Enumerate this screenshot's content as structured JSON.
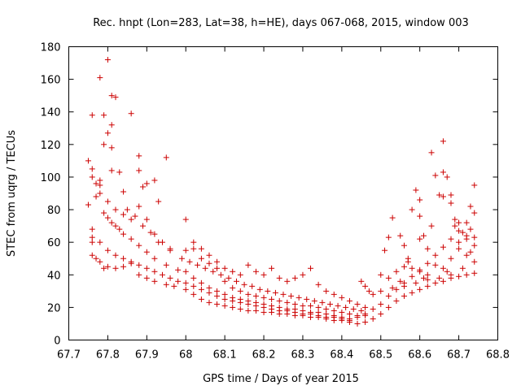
{
  "chart_data": {
    "type": "scatter",
    "title": "Rec. hnpt (Lon=283, Lat=38, h=HE), days 067-068, 2015, window 003",
    "xlabel": "GPS time / Days of year 2015",
    "ylabel": "STEC from uqrg / TECUs",
    "xlim": [
      67.7,
      68.8
    ],
    "ylim": [
      0,
      180
    ],
    "xticks": [
      "67.7",
      "67.8",
      "67.9",
      "68",
      "68.1",
      "68.2",
      "68.3",
      "68.4",
      "68.5",
      "68.6",
      "68.7",
      "68.8"
    ],
    "yticks": [
      "0",
      "20",
      "40",
      "60",
      "80",
      "100",
      "120",
      "140",
      "160",
      "180"
    ],
    "grid": false,
    "legend": "none",
    "marker": "plus",
    "color": "#cc0000",
    "points": [
      [
        67.75,
        110
      ],
      [
        67.76,
        105
      ],
      [
        67.77,
        96
      ],
      [
        67.78,
        98
      ],
      [
        67.76,
        138
      ],
      [
        67.78,
        161
      ],
      [
        67.8,
        172
      ],
      [
        67.79,
        138
      ],
      [
        67.8,
        127
      ],
      [
        67.81,
        150
      ],
      [
        67.82,
        149
      ],
      [
        67.81,
        132
      ],
      [
        67.81,
        118
      ],
      [
        67.79,
        120
      ],
      [
        67.81,
        104
      ],
      [
        67.83,
        103
      ],
      [
        67.84,
        91
      ],
      [
        67.86,
        139
      ],
      [
        67.88,
        113
      ],
      [
        67.88,
        104
      ],
      [
        67.9,
        96
      ],
      [
        67.92,
        98
      ],
      [
        67.95,
        112
      ],
      [
        67.93,
        85
      ],
      [
        67.89,
        94
      ],
      [
        67.75,
        83
      ],
      [
        67.76,
        63
      ],
      [
        67.76,
        60
      ],
      [
        67.76,
        52
      ],
      [
        67.77,
        50
      ],
      [
        67.78,
        48
      ],
      [
        67.79,
        44
      ],
      [
        67.8,
        45
      ],
      [
        67.82,
        44
      ],
      [
        67.84,
        45
      ],
      [
        67.86,
        47
      ],
      [
        67.88,
        40
      ],
      [
        67.9,
        38
      ],
      [
        67.92,
        36
      ],
      [
        67.95,
        34
      ],
      [
        67.97,
        33
      ],
      [
        68.0,
        31
      ],
      [
        68.02,
        28
      ],
      [
        68.04,
        25
      ],
      [
        68.06,
        23
      ],
      [
        68.08,
        22
      ],
      [
        68.1,
        21
      ],
      [
        68.12,
        20
      ],
      [
        68.14,
        19
      ],
      [
        68.16,
        18
      ],
      [
        68.18,
        18
      ],
      [
        68.2,
        17
      ],
      [
        68.22,
        17
      ],
      [
        68.24,
        16
      ],
      [
        68.26,
        16
      ],
      [
        68.28,
        15
      ],
      [
        68.3,
        15
      ],
      [
        68.32,
        14
      ],
      [
        68.34,
        14
      ],
      [
        68.36,
        13
      ],
      [
        68.38,
        12
      ],
      [
        68.4,
        12
      ],
      [
        68.42,
        11
      ],
      [
        68.44,
        10
      ],
      [
        68.46,
        11
      ],
      [
        68.48,
        13
      ],
      [
        68.5,
        16
      ],
      [
        68.52,
        20
      ],
      [
        68.54,
        24
      ],
      [
        68.56,
        27
      ],
      [
        68.58,
        29
      ],
      [
        68.6,
        31
      ],
      [
        68.62,
        33
      ],
      [
        68.64,
        35
      ],
      [
        68.66,
        36
      ],
      [
        68.68,
        38
      ],
      [
        68.7,
        39
      ],
      [
        68.72,
        40
      ],
      [
        68.74,
        41
      ],
      [
        67.76,
        100
      ],
      [
        67.78,
        90
      ],
      [
        67.8,
        75
      ],
      [
        67.82,
        70
      ],
      [
        67.84,
        65
      ],
      [
        67.86,
        62
      ],
      [
        67.88,
        58
      ],
      [
        67.9,
        54
      ],
      [
        67.92,
        50
      ],
      [
        67.95,
        46
      ],
      [
        67.98,
        43
      ],
      [
        68.0,
        42
      ],
      [
        68.02,
        38
      ],
      [
        68.04,
        35
      ],
      [
        68.06,
        32
      ],
      [
        68.08,
        30
      ],
      [
        68.1,
        28
      ],
      [
        68.12,
        26
      ],
      [
        68.14,
        25
      ],
      [
        68.16,
        24
      ],
      [
        68.18,
        23
      ],
      [
        68.2,
        22
      ],
      [
        68.22,
        21
      ],
      [
        68.24,
        20
      ],
      [
        68.26,
        19
      ],
      [
        68.28,
        19
      ],
      [
        68.3,
        18
      ],
      [
        68.32,
        17
      ],
      [
        68.34,
        17
      ],
      [
        68.36,
        16
      ],
      [
        68.38,
        15
      ],
      [
        68.4,
        14
      ],
      [
        68.42,
        13
      ],
      [
        68.44,
        14
      ],
      [
        68.46,
        16
      ],
      [
        68.48,
        19
      ],
      [
        68.5,
        22
      ],
      [
        68.52,
        27
      ],
      [
        68.54,
        31
      ],
      [
        68.56,
        35
      ],
      [
        68.58,
        39
      ],
      [
        68.6,
        43
      ],
      [
        68.62,
        47
      ],
      [
        68.64,
        52
      ],
      [
        68.66,
        57
      ],
      [
        68.68,
        62
      ],
      [
        68.7,
        67
      ],
      [
        68.72,
        72
      ],
      [
        68.74,
        78
      ],
      [
        67.76,
        68
      ],
      [
        67.78,
        60
      ],
      [
        67.8,
        55
      ],
      [
        67.82,
        52
      ],
      [
        67.84,
        50
      ],
      [
        67.86,
        48
      ],
      [
        67.88,
        46
      ],
      [
        67.9,
        44
      ],
      [
        67.92,
        42
      ],
      [
        67.94,
        40
      ],
      [
        67.96,
        38
      ],
      [
        67.98,
        36
      ],
      [
        68.0,
        35
      ],
      [
        68.02,
        33
      ],
      [
        68.04,
        31
      ],
      [
        68.06,
        29
      ],
      [
        68.08,
        27
      ],
      [
        68.1,
        25
      ],
      [
        68.12,
        24
      ],
      [
        68.14,
        23
      ],
      [
        68.16,
        22
      ],
      [
        68.18,
        21
      ],
      [
        68.2,
        20
      ],
      [
        68.22,
        19
      ],
      [
        68.24,
        18
      ],
      [
        68.26,
        18
      ],
      [
        68.28,
        17
      ],
      [
        68.3,
        16
      ],
      [
        68.32,
        16
      ],
      [
        68.34,
        15
      ],
      [
        68.36,
        14
      ],
      [
        68.38,
        14
      ],
      [
        68.4,
        13
      ],
      [
        68.42,
        12
      ],
      [
        67.77,
        88
      ],
      [
        67.79,
        78
      ],
      [
        67.81,
        72
      ],
      [
        67.83,
        68
      ],
      [
        67.85,
        80
      ],
      [
        67.87,
        76
      ],
      [
        67.89,
        70
      ],
      [
        67.91,
        66
      ],
      [
        67.93,
        60
      ],
      [
        67.96,
        56
      ],
      [
        67.99,
        50
      ],
      [
        68.01,
        48
      ],
      [
        68.03,
        46
      ],
      [
        68.05,
        44
      ],
      [
        68.07,
        42
      ],
      [
        68.09,
        40
      ],
      [
        68.11,
        38
      ],
      [
        68.13,
        36
      ],
      [
        68.15,
        34
      ],
      [
        68.17,
        33
      ],
      [
        68.19,
        31
      ],
      [
        68.21,
        30
      ],
      [
        68.23,
        29
      ],
      [
        68.25,
        28
      ],
      [
        68.27,
        27
      ],
      [
        68.29,
        26
      ],
      [
        68.31,
        25
      ],
      [
        68.33,
        24
      ],
      [
        68.35,
        23
      ],
      [
        68.37,
        22
      ],
      [
        68.39,
        21
      ],
      [
        68.41,
        20
      ],
      [
        68.43,
        19
      ],
      [
        68.45,
        18
      ],
      [
        67.78,
        95
      ],
      [
        67.8,
        85
      ],
      [
        67.82,
        80
      ],
      [
        67.84,
        77
      ],
      [
        67.86,
        74
      ],
      [
        67.88,
        82
      ],
      [
        67.9,
        74
      ],
      [
        67.92,
        65
      ],
      [
        67.94,
        60
      ],
      [
        67.96,
        55
      ],
      [
        68.0,
        55
      ],
      [
        68.02,
        60
      ],
      [
        68.04,
        56
      ],
      [
        68.06,
        52
      ],
      [
        68.08,
        48
      ],
      [
        68.1,
        44
      ],
      [
        68.12,
        42
      ],
      [
        68.14,
        40
      ],
      [
        68.16,
        46
      ],
      [
        68.18,
        42
      ],
      [
        68.2,
        40
      ],
      [
        68.22,
        44
      ],
      [
        68.24,
        38
      ],
      [
        68.26,
        36
      ],
      [
        68.28,
        38
      ],
      [
        68.3,
        40
      ],
      [
        68.32,
        44
      ],
      [
        68.34,
        34
      ],
      [
        68.36,
        30
      ],
      [
        68.38,
        28
      ],
      [
        68.4,
        26
      ],
      [
        68.42,
        24
      ],
      [
        68.44,
        22
      ],
      [
        68.46,
        20
      ],
      [
        68.0,
        74
      ],
      [
        68.02,
        56
      ],
      [
        68.04,
        50
      ],
      [
        68.06,
        47
      ],
      [
        68.08,
        44
      ],
      [
        68.1,
        36
      ],
      [
        68.12,
        32
      ],
      [
        68.14,
        30
      ],
      [
        68.16,
        28
      ],
      [
        68.18,
        27
      ],
      [
        68.2,
        26
      ],
      [
        68.22,
        25
      ],
      [
        68.24,
        24
      ],
      [
        68.26,
        23
      ],
      [
        68.28,
        22
      ],
      [
        68.3,
        21
      ],
      [
        68.32,
        21
      ],
      [
        68.34,
        20
      ],
      [
        68.36,
        19
      ],
      [
        68.38,
        18
      ],
      [
        68.4,
        17
      ],
      [
        68.42,
        16
      ],
      [
        68.44,
        15
      ],
      [
        68.46,
        15
      ],
      [
        68.45,
        36
      ],
      [
        68.46,
        33
      ],
      [
        68.47,
        30
      ],
      [
        68.48,
        28
      ],
      [
        68.5,
        40
      ],
      [
        68.51,
        55
      ],
      [
        68.52,
        63
      ],
      [
        68.53,
        75
      ],
      [
        68.55,
        64
      ],
      [
        68.56,
        58
      ],
      [
        68.57,
        50
      ],
      [
        68.58,
        80
      ],
      [
        68.59,
        92
      ],
      [
        68.6,
        86
      ],
      [
        68.6,
        76
      ],
      [
        68.61,
        64
      ],
      [
        68.62,
        56
      ],
      [
        68.63,
        115
      ],
      [
        68.64,
        101
      ],
      [
        68.65,
        89
      ],
      [
        68.66,
        122
      ],
      [
        68.66,
        103
      ],
      [
        68.67,
        100
      ],
      [
        68.68,
        89
      ],
      [
        68.68,
        84
      ],
      [
        68.69,
        74
      ],
      [
        68.7,
        72
      ],
      [
        68.71,
        66
      ],
      [
        68.72,
        62
      ],
      [
        68.73,
        82
      ],
      [
        68.74,
        95
      ],
      [
        68.74,
        63
      ],
      [
        68.52,
        38
      ],
      [
        68.54,
        42
      ],
      [
        68.56,
        45
      ],
      [
        68.58,
        44
      ],
      [
        68.6,
        42
      ],
      [
        68.62,
        40
      ],
      [
        68.64,
        46
      ],
      [
        68.66,
        44
      ],
      [
        68.68,
        50
      ],
      [
        68.7,
        56
      ],
      [
        68.72,
        52
      ],
      [
        68.74,
        48
      ],
      [
        68.5,
        30
      ],
      [
        68.53,
        32
      ],
      [
        68.56,
        33
      ],
      [
        68.59,
        35
      ],
      [
        68.62,
        37
      ],
      [
        68.65,
        38
      ],
      [
        68.68,
        40
      ],
      [
        68.71,
        44
      ],
      [
        68.73,
        54
      ],
      [
        68.57,
        48
      ],
      [
        68.6,
        62
      ],
      [
        68.63,
        70
      ],
      [
        68.66,
        88
      ],
      [
        68.69,
        70
      ],
      [
        68.72,
        64
      ],
      [
        68.74,
        58
      ],
      [
        68.55,
        36
      ],
      [
        68.61,
        38
      ],
      [
        68.67,
        42
      ],
      [
        68.7,
        60
      ],
      [
        68.73,
        68
      ]
    ]
  }
}
